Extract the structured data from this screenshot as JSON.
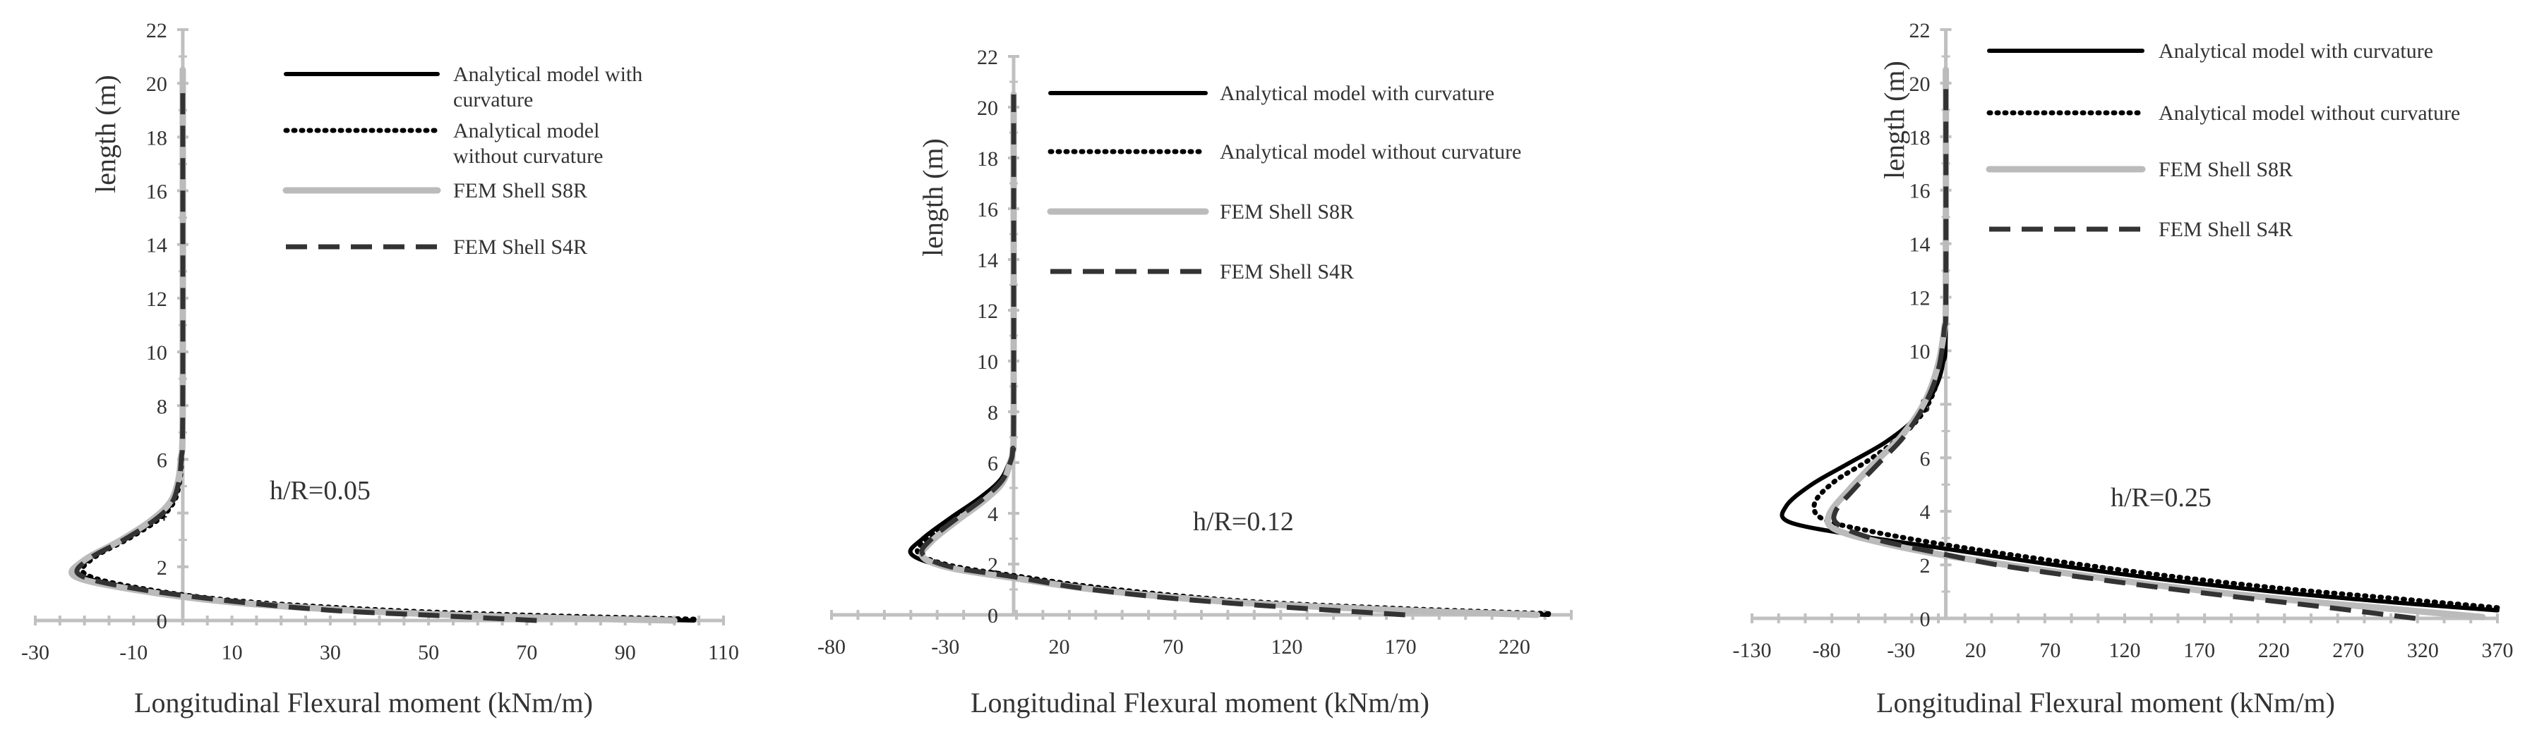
{
  "chart_data": [
    {
      "type": "line",
      "annotation": "h/R=0.05",
      "xlabel": "Longitudinal Flexural moment (kNm/m)",
      "ylabel": "length (m)",
      "xlim": [
        -30,
        110
      ],
      "ylim": [
        0,
        22
      ],
      "xticks": [
        -30,
        -10,
        10,
        30,
        50,
        70,
        90,
        110
      ],
      "yticks": [
        0,
        2,
        4,
        6,
        8,
        10,
        12,
        14,
        16,
        18,
        20,
        22
      ],
      "legend_position": "top-right",
      "series": [
        {
          "name": "Analytical model with curvature",
          "style": "solid",
          "color": "#000000",
          "points": [
            [
              104,
              0
            ],
            [
              70,
              0.15
            ],
            [
              40,
              0.35
            ],
            [
              10,
              0.7
            ],
            [
              -10,
              1.2
            ],
            [
              -21,
              1.7
            ],
            [
              -19,
              2.3
            ],
            [
              -12,
              3.0
            ],
            [
              -6,
              3.7
            ],
            [
              -2.5,
              4.3
            ],
            [
              -1,
              5
            ],
            [
              -0.3,
              6
            ],
            [
              0,
              8
            ],
            [
              0,
              20
            ]
          ]
        },
        {
          "name": "Analytical model without curvature",
          "style": "dotted",
          "color": "#000000",
          "points": [
            [
              104,
              0.05
            ],
            [
              70,
              0.2
            ],
            [
              40,
              0.4
            ],
            [
              10,
              0.75
            ],
            [
              -10,
              1.25
            ],
            [
              -20,
              1.75
            ],
            [
              -18,
              2.35
            ],
            [
              -11,
              3.05
            ],
            [
              -5,
              3.75
            ],
            [
              -2,
              4.35
            ],
            [
              -0.8,
              5
            ],
            [
              -0.2,
              6
            ],
            [
              0,
              8
            ],
            [
              0,
              20
            ]
          ]
        },
        {
          "name": "FEM Shell S8R",
          "style": "solid",
          "color": "#bbbbbb",
          "points": [
            [
              100,
              0
            ],
            [
              70,
              0.12
            ],
            [
              40,
              0.32
            ],
            [
              10,
              0.68
            ],
            [
              -10,
              1.15
            ],
            [
              -22,
              1.65
            ],
            [
              -20,
              2.25
            ],
            [
              -13,
              2.95
            ],
            [
              -7,
              3.65
            ],
            [
              -3,
              4.3
            ],
            [
              -1.2,
              5
            ],
            [
              -0.4,
              6
            ],
            [
              0,
              8
            ],
            [
              0,
              20.5
            ]
          ]
        },
        {
          "name": "FEM Shell S4R",
          "style": "dashed",
          "color": "#333333",
          "points": [
            [
              72,
              0
            ],
            [
              50,
              0.2
            ],
            [
              30,
              0.38
            ],
            [
              10,
              0.72
            ],
            [
              -10,
              1.2
            ],
            [
              -21,
              1.7
            ],
            [
              -19,
              2.3
            ],
            [
              -12,
              3.0
            ],
            [
              -6,
              3.7
            ],
            [
              -2.5,
              4.3
            ],
            [
              -1,
              5
            ],
            [
              -0.3,
              6
            ],
            [
              0,
              8
            ],
            [
              0,
              20
            ]
          ]
        }
      ]
    },
    {
      "type": "line",
      "annotation": "h/R=0.12",
      "xlabel": "Longitudinal Flexural moment (kNm/m)",
      "ylabel": "length (m)",
      "xlim": [
        -80,
        245
      ],
      "ylim": [
        0,
        22
      ],
      "xticks": [
        -80,
        -30,
        20,
        70,
        120,
        170,
        220
      ],
      "yticks": [
        0,
        2,
        4,
        6,
        8,
        10,
        12,
        14,
        16,
        18,
        20,
        22
      ],
      "legend_position": "top-right",
      "series": [
        {
          "name": "Analytical model with curvature",
          "style": "solid",
          "color": "#000000",
          "points": [
            [
              235,
              0
            ],
            [
              170,
              0.2
            ],
            [
              100,
              0.5
            ],
            [
              40,
              1.0
            ],
            [
              0,
              1.5
            ],
            [
              -30,
              1.9
            ],
            [
              -45,
              2.4
            ],
            [
              -40,
              3.0
            ],
            [
              -28,
              3.8
            ],
            [
              -15,
              4.6
            ],
            [
              -6,
              5.3
            ],
            [
              -2,
              6
            ],
            [
              -0.5,
              6.5
            ],
            [
              0,
              8
            ],
            [
              0,
              20.5
            ]
          ]
        },
        {
          "name": "Analytical model without curvature",
          "style": "dotted",
          "color": "#000000",
          "points": [
            [
              235,
              0.05
            ],
            [
              170,
              0.25
            ],
            [
              100,
              0.55
            ],
            [
              40,
              1.05
            ],
            [
              0,
              1.55
            ],
            [
              -28,
              1.95
            ],
            [
              -42,
              2.45
            ],
            [
              -37,
              3.05
            ],
            [
              -25,
              3.85
            ],
            [
              -13,
              4.6
            ],
            [
              -5,
              5.3
            ],
            [
              -1.5,
              6
            ],
            [
              -0.4,
              6.5
            ],
            [
              0,
              8
            ],
            [
              0,
              20.5
            ]
          ]
        },
        {
          "name": "FEM Shell S8R",
          "style": "solid",
          "color": "#bbbbbb",
          "points": [
            [
              230,
              0
            ],
            [
              170,
              0.18
            ],
            [
              100,
              0.48
            ],
            [
              40,
              0.95
            ],
            [
              0,
              1.45
            ],
            [
              -28,
              1.85
            ],
            [
              -40,
              2.3
            ],
            [
              -36,
              2.9
            ],
            [
              -25,
              3.7
            ],
            [
              -13,
              4.5
            ],
            [
              -5,
              5.2
            ],
            [
              -1.5,
              6
            ],
            [
              -0.4,
              6.5
            ],
            [
              0,
              8
            ],
            [
              0,
              20.5
            ]
          ]
        },
        {
          "name": "FEM Shell S4R",
          "style": "dashed",
          "color": "#333333",
          "points": [
            [
              172,
              0
            ],
            [
              120,
              0.3
            ],
            [
              70,
              0.65
            ],
            [
              30,
              1.05
            ],
            [
              0,
              1.5
            ],
            [
              -28,
              1.9
            ],
            [
              -40,
              2.4
            ],
            [
              -36,
              3.0
            ],
            [
              -25,
              3.8
            ],
            [
              -13,
              4.6
            ],
            [
              -5,
              5.3
            ],
            [
              -1.5,
              6
            ],
            [
              -0.4,
              6.5
            ],
            [
              0,
              8
            ],
            [
              0,
              20.5
            ]
          ]
        }
      ]
    },
    {
      "type": "line",
      "annotation": "h/R=0.25",
      "xlabel": "Longitudinal Flexural moment (kNm/m)",
      "ylabel": "length (m)",
      "xlim": [
        -130,
        370
      ],
      "ylim": [
        0,
        22
      ],
      "xticks": [
        -130,
        -80,
        -30,
        20,
        70,
        120,
        170,
        220,
        270,
        320,
        370
      ],
      "yticks": [
        0,
        2,
        4,
        6,
        8,
        10,
        12,
        14,
        16,
        18,
        20,
        22
      ],
      "legend_position": "top-right",
      "series": [
        {
          "name": "Analytical model with curvature",
          "style": "solid",
          "color": "#000000",
          "points": [
            [
              370,
              0.3
            ],
            [
              300,
              0.6
            ],
            [
              220,
              1.0
            ],
            [
              140,
              1.5
            ],
            [
              60,
              2.1
            ],
            [
              0,
              2.6
            ],
            [
              -60,
              3.1
            ],
            [
              -105,
              3.6
            ],
            [
              -107,
              4.2
            ],
            [
              -90,
              5.0
            ],
            [
              -65,
              5.8
            ],
            [
              -40,
              6.6
            ],
            [
              -20,
              7.5
            ],
            [
              -8,
              8.5
            ],
            [
              -2,
              9.5
            ],
            [
              0,
              11
            ],
            [
              0,
              20
            ]
          ]
        },
        {
          "name": "Analytical model without curvature",
          "style": "dotted",
          "color": "#000000",
          "points": [
            [
              370,
              0.4
            ],
            [
              300,
              0.75
            ],
            [
              220,
              1.15
            ],
            [
              140,
              1.65
            ],
            [
              60,
              2.25
            ],
            [
              0,
              2.75
            ],
            [
              -50,
              3.25
            ],
            [
              -82,
              3.7
            ],
            [
              -88,
              4.3
            ],
            [
              -75,
              5.1
            ],
            [
              -52,
              5.9
            ],
            [
              -30,
              6.8
            ],
            [
              -14,
              7.8
            ],
            [
              -5,
              9
            ],
            [
              -1,
              10.5
            ],
            [
              0,
              12
            ],
            [
              0,
              20
            ]
          ]
        },
        {
          "name": "FEM Shell S8R",
          "style": "solid",
          "color": "#bbbbbb",
          "points": [
            [
              360,
              0.05
            ],
            [
              300,
              0.35
            ],
            [
              220,
              0.75
            ],
            [
              140,
              1.25
            ],
            [
              60,
              1.85
            ],
            [
              0,
              2.35
            ],
            [
              -45,
              2.85
            ],
            [
              -75,
              3.35
            ],
            [
              -78,
              3.9
            ],
            [
              -65,
              4.8
            ],
            [
              -48,
              5.8
            ],
            [
              -30,
              6.8
            ],
            [
              -15,
              8
            ],
            [
              -6,
              9.3
            ],
            [
              -1,
              10.8
            ],
            [
              0,
              12
            ],
            [
              0,
              20.5
            ]
          ]
        },
        {
          "name": "FEM Shell S4R",
          "style": "dashed",
          "color": "#333333",
          "points": [
            [
              315,
              0
            ],
            [
              250,
              0.45
            ],
            [
              180,
              0.9
            ],
            [
              110,
              1.4
            ],
            [
              40,
              1.95
            ],
            [
              -10,
              2.5
            ],
            [
              -50,
              3.0
            ],
            [
              -72,
              3.5
            ],
            [
              -74,
              4.0
            ],
            [
              -62,
              4.8
            ],
            [
              -45,
              5.8
            ],
            [
              -28,
              6.8
            ],
            [
              -14,
              8
            ],
            [
              -5,
              9.3
            ],
            [
              -1,
              10.8
            ],
            [
              0,
              12
            ],
            [
              0,
              20
            ]
          ]
        }
      ]
    }
  ]
}
